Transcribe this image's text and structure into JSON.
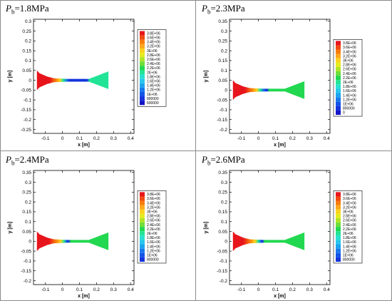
{
  "chart_data": [
    {
      "type": "contour",
      "param_symbol": "P",
      "param_subscript": "b",
      "param_value": "=1.8MPa",
      "xlabel": "x [m]",
      "ylabel": "y [m]",
      "xlim": [
        -0.17,
        0.42
      ],
      "ylim": [
        -0.27,
        0.31
      ],
      "xticks": [
        "-0.1",
        "0",
        "0.1",
        "0.2",
        "0.3",
        "0.4"
      ],
      "xtick_values": [
        -0.1,
        0,
        0.1,
        0.2,
        0.3,
        0.4
      ],
      "yticks": [
        "0.3",
        "0.25",
        "0.2",
        "0.15",
        "0.1",
        "0.05",
        "0",
        "-0.05",
        "-0.1",
        "-0.15",
        "-0.2",
        "-0.25"
      ],
      "ytick_values": [
        0.3,
        0.25,
        0.2,
        0.15,
        0.1,
        0.05,
        0,
        -0.05,
        -0.1,
        -0.15,
        -0.2,
        -0.25
      ],
      "legend": [
        "3.8E+06",
        "3.6E+06",
        "3.4E+06",
        "3.2E+06",
        "3E+06",
        "2.8E+06",
        "2.6E+06",
        "2.4E+06",
        "2.2E+06",
        "2E+06",
        "1.8E+06",
        "1.6E+06",
        "1.4E+06",
        "1.2E+06",
        "1E+06",
        "800000",
        "600000"
      ],
      "legend_colors": [
        "#e8141c",
        "#f04a14",
        "#f87c0c",
        "#fca81c",
        "#fcd21e",
        "#e4ec20",
        "#b0e428",
        "#6ede3a",
        "#22d850",
        "#22e496",
        "#2ae0d0",
        "#28c6ee",
        "#1ca4f0",
        "#1878ec",
        "#1454e8",
        "#1434dc",
        "#1414c8"
      ],
      "geometry": {
        "x_left": -0.15,
        "x_throat_start": 0.03,
        "x_throat_end": 0.155,
        "x_right": 0.27,
        "y_inlet": 0.05,
        "y_throat": 0.007,
        "y_exit": 0.045
      },
      "field": [
        {
          "x": -0.15,
          "color": "#e8141c"
        },
        {
          "x": -0.075,
          "color": "#e8141c"
        },
        {
          "x": -0.04,
          "color": "#f87c0c"
        },
        {
          "x": -0.015,
          "color": "#fcd21e"
        },
        {
          "x": 0.005,
          "color": "#22e496"
        },
        {
          "x": 0.025,
          "color": "#1878ec"
        },
        {
          "x": 0.04,
          "color": "#1434dc"
        },
        {
          "x": 0.145,
          "color": "#1434dc"
        },
        {
          "x": 0.16,
          "color": "#22e496"
        },
        {
          "x": 0.27,
          "color": "#22e496"
        }
      ]
    },
    {
      "type": "contour",
      "param_symbol": "P",
      "param_subscript": "b",
      "param_value": "=2.3MPa",
      "xlabel": "x [m]",
      "ylabel": "y [m]",
      "xlim": [
        -0.17,
        0.42
      ],
      "ylim": [
        -0.22,
        0.36
      ],
      "xticks": [
        "-0.1",
        "0",
        "0.1",
        "0.2",
        "0.3",
        "0.4"
      ],
      "xtick_values": [
        -0.1,
        0,
        0.1,
        0.2,
        0.3,
        0.4
      ],
      "yticks": [
        "0.35",
        "0.3",
        "0.25",
        "0.2",
        "0.15",
        "0.1",
        "0.05",
        "0",
        "-0.05",
        "-0.1",
        "-0.15",
        "-0.2"
      ],
      "ytick_values": [
        0.35,
        0.3,
        0.25,
        0.2,
        0.15,
        0.1,
        0.05,
        0,
        -0.05,
        -0.1,
        -0.15,
        -0.2
      ],
      "legend": [
        "3.8E+06",
        "3.6E+06",
        "3.4E+06",
        "3.2E+06",
        "3E+06",
        "2.8E+06",
        "2.6E+06",
        "2.4E+06",
        "2.2E+06",
        "2E+06",
        "1.8E+06",
        "1.6E+06",
        "1.4E+06",
        "1.2E+06",
        "1E+06",
        "800000",
        "0"
      ],
      "legend_colors": [
        "#e8141c",
        "#f04a14",
        "#f87c0c",
        "#fca81c",
        "#fcd21e",
        "#e4ec20",
        "#b0e428",
        "#6ede3a",
        "#22d850",
        "#22e496",
        "#2ae0d0",
        "#28c6ee",
        "#1ca4f0",
        "#1878ec",
        "#1454e8",
        "#1434dc",
        "#1414c8"
      ],
      "geometry": {
        "x_left": -0.15,
        "x_throat_start": 0.03,
        "x_throat_end": 0.155,
        "x_right": 0.27,
        "y_inlet": 0.05,
        "y_throat": 0.007,
        "y_exit": 0.045
      },
      "field": [
        {
          "x": -0.15,
          "color": "#e8141c"
        },
        {
          "x": -0.08,
          "color": "#e8141c"
        },
        {
          "x": -0.04,
          "color": "#f87c0c"
        },
        {
          "x": -0.01,
          "color": "#fcd21e"
        },
        {
          "x": 0.01,
          "color": "#22e496"
        },
        {
          "x": 0.035,
          "color": "#1454e8"
        },
        {
          "x": 0.05,
          "color": "#1434dc"
        },
        {
          "x": 0.065,
          "color": "#22d850"
        },
        {
          "x": 0.27,
          "color": "#22d850"
        }
      ]
    },
    {
      "type": "contour",
      "param_symbol": "P",
      "param_subscript": "b",
      "param_value": "=2.4MPa",
      "xlabel": "x [m]",
      "ylabel": "y [m]",
      "xlim": [
        -0.17,
        0.42
      ],
      "ylim": [
        -0.22,
        0.36
      ],
      "xticks": [
        "-0.1",
        "0",
        "0.1",
        "0.2",
        "0.3",
        "0.4"
      ],
      "xtick_values": [
        -0.1,
        0,
        0.1,
        0.2,
        0.3,
        0.4
      ],
      "yticks": [
        "0.35",
        "0.3",
        "0.25",
        "0.2",
        "0.15",
        "0.1",
        "0.05",
        "0",
        "-0.05",
        "-0.1",
        "-0.15",
        "-0.2"
      ],
      "ytick_values": [
        0.35,
        0.3,
        0.25,
        0.2,
        0.15,
        0.1,
        0.05,
        0,
        -0.05,
        -0.1,
        -0.15,
        -0.2
      ],
      "legend": [
        "3.8E+06",
        "3.6E+06",
        "3.4E+06",
        "3.2E+06",
        "3E+06",
        "2.8E+06",
        "2.6E+06",
        "2.4E+06",
        "2.2E+06",
        "2E+06",
        "1.8E+06",
        "1.6E+06",
        "1.4E+06",
        "1.2E+06",
        "1E+06",
        "800000"
      ],
      "legend_colors": [
        "#e8141c",
        "#f04a14",
        "#f87c0c",
        "#fca81c",
        "#fcd21e",
        "#e4ec20",
        "#b0e428",
        "#6ede3a",
        "#22d850",
        "#22e496",
        "#2ae0d0",
        "#28c6ee",
        "#1ca4f0",
        "#1878ec",
        "#1454e8",
        "#1434dc"
      ],
      "geometry": {
        "x_left": -0.15,
        "x_throat_start": 0.03,
        "x_throat_end": 0.155,
        "x_right": 0.27,
        "y_inlet": 0.05,
        "y_throat": 0.007,
        "y_exit": 0.045
      },
      "field": [
        {
          "x": -0.15,
          "color": "#e8141c"
        },
        {
          "x": -0.08,
          "color": "#e8141c"
        },
        {
          "x": -0.04,
          "color": "#f87c0c"
        },
        {
          "x": -0.01,
          "color": "#fcd21e"
        },
        {
          "x": 0.01,
          "color": "#22e496"
        },
        {
          "x": 0.025,
          "color": "#1454e8"
        },
        {
          "x": 0.035,
          "color": "#1434dc"
        },
        {
          "x": 0.05,
          "color": "#22d850"
        },
        {
          "x": 0.27,
          "color": "#22d850"
        }
      ]
    },
    {
      "type": "contour",
      "param_symbol": "P",
      "param_subscript": "b",
      "param_value": "=2.6MPa",
      "xlabel": "x [m]",
      "ylabel": "y [m]",
      "xlim": [
        -0.17,
        0.42
      ],
      "ylim": [
        -0.22,
        0.36
      ],
      "xticks": [
        "-0.1",
        "0",
        "0.1",
        "0.2",
        "0.3",
        "0.4"
      ],
      "xtick_values": [
        -0.1,
        0,
        0.1,
        0.2,
        0.3,
        0.4
      ],
      "yticks": [
        "0.35",
        "0.3",
        "0.25",
        "0.2",
        "0.15",
        "0.1",
        "0.05",
        "0",
        "-0.05",
        "-0.1",
        "-0.15",
        "-0.2"
      ],
      "ytick_values": [
        0.35,
        0.3,
        0.25,
        0.2,
        0.15,
        0.1,
        0.05,
        0,
        -0.05,
        -0.1,
        -0.15,
        -0.2
      ],
      "legend": [
        "3.8E+06",
        "3.6E+06",
        "3.4E+06",
        "3.2E+06",
        "3E+06",
        "2.8E+06",
        "2.6E+06",
        "2.4E+06",
        "2.2E+06",
        "2E+06",
        "1.8E+06",
        "1.6E+06",
        "1.4E+06",
        "1.2E+06",
        "1E+06",
        "800000"
      ],
      "legend_colors": [
        "#e8141c",
        "#f04a14",
        "#f87c0c",
        "#fca81c",
        "#fcd21e",
        "#e4ec20",
        "#b0e428",
        "#6ede3a",
        "#22d850",
        "#22e496",
        "#2ae0d0",
        "#28c6ee",
        "#1ca4f0",
        "#1878ec",
        "#1454e8",
        "#1434dc"
      ],
      "geometry": {
        "x_left": -0.15,
        "x_throat_start": 0.03,
        "x_throat_end": 0.155,
        "x_right": 0.27,
        "y_inlet": 0.05,
        "y_throat": 0.007,
        "y_exit": 0.045
      },
      "field": [
        {
          "x": -0.15,
          "color": "#e8141c"
        },
        {
          "x": -0.09,
          "color": "#e8141c"
        },
        {
          "x": -0.05,
          "color": "#f87c0c"
        },
        {
          "x": -0.02,
          "color": "#fcd21e"
        },
        {
          "x": 0.0,
          "color": "#22e496"
        },
        {
          "x": 0.015,
          "color": "#1454e8"
        },
        {
          "x": 0.025,
          "color": "#1434dc"
        },
        {
          "x": 0.035,
          "color": "#22d850"
        },
        {
          "x": 0.27,
          "color": "#22d850"
        }
      ]
    }
  ]
}
